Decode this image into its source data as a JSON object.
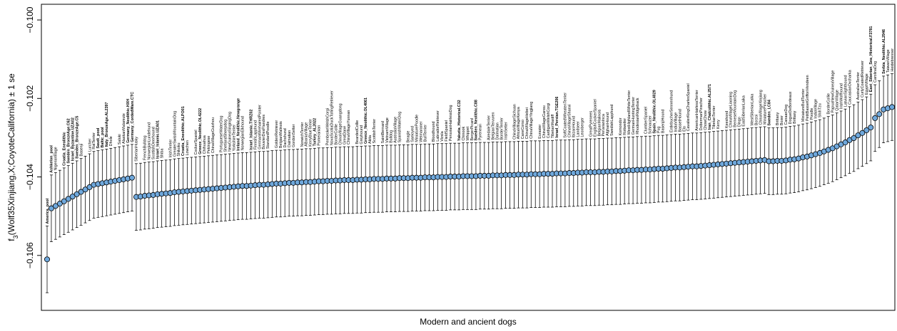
{
  "chart_data": {
    "type": "scatter",
    "title": "",
    "xlabel": "Modern and ancient dogs",
    "ylabel": "f₃(Wolf35Xinjiang,X;CoyoteCalifornia) ± 1 se",
    "ylabel_parts": {
      "prefix": "f",
      "subscript": "3",
      "body": "(Wolf35Xinjiang,X;CoyoteCalifornia) ± 1 se"
    },
    "ylim": [
      -0.1074,
      -0.0996
    ],
    "yticks": [
      -0.106,
      -0.104,
      -0.102,
      -0.1
    ],
    "ytick_labels": [
      "−0.106",
      "−0.104",
      "−0.102",
      "−0.100"
    ],
    "grid": false,
    "se": 0.00085,
    "n_points": 200,
    "labels": [
      {
        "i": 0,
        "text": "America_pool",
        "bold": true
      },
      {
        "i": 1,
        "text": "Ashkelon_pool",
        "bold": true
      },
      {
        "i": 2,
        "text": "NigeriaVillage",
        "bold": false
      },
      {
        "i": 3,
        "text": "Croatia_Eneolithic",
        "bold": true
      },
      {
        "i": 4,
        "text": "Sweden_BronzeAge.C62",
        "bold": true
      },
      {
        "i": 5,
        "text": "Israel_Byzantine.UZA02",
        "bold": true
      },
      {
        "i": 6,
        "text": "Sweden_BronzeAge.C5",
        "bold": true
      },
      {
        "i": 7,
        "text": "Basenji",
        "bold": false
      },
      {
        "i": 8,
        "text": "Lurcher",
        "bold": false
      },
      {
        "i": 9,
        "text": "RatTerrier",
        "bold": false
      },
      {
        "i": 10,
        "text": "Saudi_pool",
        "bold": true
      },
      {
        "i": 11,
        "text": "Baltic_pool",
        "bold": true
      },
      {
        "i": 12,
        "text": "Italy_BronzeAge.AL2397",
        "bold": true
      },
      {
        "i": 13,
        "text": "Dhole",
        "bold": false
      },
      {
        "i": 14,
        "text": "Saluki",
        "bold": false
      },
      {
        "i": 15,
        "text": "AlaskanMalamute",
        "bold": false
      },
      {
        "i": 16,
        "text": "Germany_Neolithic.HXH",
        "bold": true
      },
      {
        "i": 17,
        "text": "Germany_CordedWare.CTC",
        "bold": true
      },
      {
        "i": 18,
        "text": "SiberianHusky",
        "bold": false
      },
      {
        "i": 19,
        "text": "FrenchBulldog",
        "bold": false
      },
      {
        "i": 20,
        "text": "NorwegianLundehund",
        "bold": false
      },
      {
        "i": 21,
        "text": "ScottishDeerhound",
        "bold": false
      },
      {
        "i": 22,
        "text": "Israel_Islamic.UZA01",
        "bold": true
      },
      {
        "i": 23,
        "text": "Shiba",
        "bold": false
      },
      {
        "i": 24,
        "text": "IrishTerrier",
        "bold": false
      },
      {
        "i": 25,
        "text": "GreaterSwissMountainDog",
        "bold": false
      },
      {
        "i": 26,
        "text": "Shikoku",
        "bold": false
      },
      {
        "i": 27,
        "text": "Croatia_Eneolithic.ALPO01",
        "bold": true
      },
      {
        "i": 28,
        "text": "Lowchen",
        "bold": false
      },
      {
        "i": 29,
        "text": "CockerSpaniel",
        "bold": false
      },
      {
        "i": 30,
        "text": "Greece_Neolithic.OL4222",
        "bold": true
      },
      {
        "i": 31,
        "text": "Chihuahua",
        "bold": false
      },
      {
        "i": 32,
        "text": "Pekingese",
        "bold": false
      },
      {
        "i": 33,
        "text": "ChinaVillageGuizhou",
        "bold": false
      },
      {
        "i": 34,
        "text": "PortugueseWaterDog",
        "bold": false
      },
      {
        "i": 35,
        "text": "ShetlandSheepdog",
        "bold": false
      },
      {
        "i": 36,
        "text": "NewGuineaSingingDog",
        "bold": false
      },
      {
        "i": 37,
        "text": "YorkshireTerrier",
        "bold": false
      },
      {
        "i": 38,
        "text": "Ireland_Neolithic.Newgrange",
        "bold": true
      },
      {
        "i": 39,
        "text": "NorwegianElkhound",
        "bold": false
      },
      {
        "i": 40,
        "text": "Israel_Islamic.THRZ02",
        "bold": true
      },
      {
        "i": 41,
        "text": "FinnishLapphund",
        "bold": false
      },
      {
        "i": 42,
        "text": "GermanWirehairedPointer",
        "bold": false
      },
      {
        "i": 43,
        "text": "BouvierDesFlandres",
        "bold": false
      },
      {
        "i": 44,
        "text": "StandardPoodle",
        "bold": false
      },
      {
        "i": 45,
        "text": "GoldenRetriever",
        "bold": false
      },
      {
        "i": 46,
        "text": "BelgianMalinois",
        "bold": false
      },
      {
        "i": 47,
        "text": "Dachshund",
        "bold": false
      },
      {
        "i": 48,
        "text": "Dalmatian",
        "bold": false
      },
      {
        "i": 49,
        "text": "GordonSetter",
        "bold": false
      },
      {
        "i": 50,
        "text": "NorwichTerrier",
        "bold": false
      },
      {
        "i": 51,
        "text": "AlbaniaVillage",
        "bold": false
      },
      {
        "i": 52,
        "text": "KerryBlueTerrier",
        "bold": false
      },
      {
        "i": 53,
        "text": "Turkey_AL2022",
        "bold": true
      },
      {
        "i": 54,
        "text": "Pomeranian",
        "bold": false
      },
      {
        "i": 55,
        "text": "PembrokeWelshCorgi",
        "bold": false
      },
      {
        "i": 56,
        "text": "NovaScotiaDuckTollingRetriever",
        "bold": false
      },
      {
        "i": 57,
        "text": "BorderCollie",
        "bold": false
      },
      {
        "i": 58,
        "text": "ChinaVillageGuangdong",
        "bold": false
      },
      {
        "i": 59,
        "text": "GreatDane",
        "bold": false
      },
      {
        "i": 60,
        "text": "ChinaVillageYunnan",
        "bold": false
      },
      {
        "i": 61,
        "text": "BeardedCollie",
        "bold": false
      },
      {
        "i": 62,
        "text": "Greyhound",
        "bold": false
      },
      {
        "i": 63,
        "text": "Greece_Neolithic.OL4061",
        "bold": true
      },
      {
        "i": 64,
        "text": "Akita",
        "bold": false
      },
      {
        "i": 65,
        "text": "ScottishTerrier",
        "bold": false
      },
      {
        "i": 66,
        "text": "SaintBernard",
        "bold": false
      },
      {
        "i": 67,
        "text": "VietnamVillage",
        "bold": false
      },
      {
        "i": 68,
        "text": "Bulldog",
        "bold": false
      },
      {
        "i": 69,
        "text": "AustraliaVillage",
        "bold": false
      },
      {
        "i": 70,
        "text": "SpanishWaterDog",
        "bold": false
      },
      {
        "i": 71,
        "text": "Beagle",
        "bold": false
      },
      {
        "i": 72,
        "text": "Samoyed",
        "bold": false
      },
      {
        "i": 73,
        "text": "MiniaturePoodle",
        "bold": false
      },
      {
        "i": 74,
        "text": "Weimaraner",
        "bold": false
      },
      {
        "i": 75,
        "text": "BullTerrier",
        "bold": false
      },
      {
        "i": 76,
        "text": "Bloodhound",
        "bold": false
      },
      {
        "i": 77,
        "text": "LabradorRetriever",
        "bold": false
      },
      {
        "i": 78,
        "text": "Vizsla",
        "bold": false
      },
      {
        "i": 79,
        "text": "FieldSpaniel",
        "bold": false
      },
      {
        "i": 80,
        "text": "PeruvianHairlessDog",
        "bold": false
      },
      {
        "i": 81,
        "text": "Yakutia_Historical.C32",
        "bold": true
      },
      {
        "i": 82,
        "text": "Chinook",
        "bold": false
      },
      {
        "i": 83,
        "text": "Whippet",
        "bold": false
      },
      {
        "i": 84,
        "text": "BergerPicard",
        "bold": false
      },
      {
        "i": 85,
        "text": "Sweden_Neolithic.C88",
        "bold": true
      },
      {
        "i": 86,
        "text": "Pyrenean",
        "bold": false
      },
      {
        "i": 87,
        "text": "AiredaleTerrier",
        "bold": false
      },
      {
        "i": 88,
        "text": "BelgianTervuren",
        "bold": false
      },
      {
        "i": 89,
        "text": "Dalmatian",
        "bold": false
      },
      {
        "i": 90,
        "text": "BorderTerrier",
        "bold": false
      },
      {
        "i": 91,
        "text": "IrishSetter",
        "bold": false
      },
      {
        "i": 92,
        "text": "ChinaVillageSichuan",
        "bold": false
      },
      {
        "i": 93,
        "text": "AfricaVillageKenya",
        "bold": false
      },
      {
        "i": 94,
        "text": "CaneCorso",
        "bold": false
      },
      {
        "i": 95,
        "text": "ChinaVillageHebei",
        "bold": false
      },
      {
        "i": 96,
        "text": "ChinaVillageYingjiang",
        "bold": false
      },
      {
        "i": 97,
        "text": "Eurasier",
        "bold": false
      },
      {
        "i": 98,
        "text": "ChinaVillageGansu",
        "bold": false
      },
      {
        "i": 99,
        "text": "CardiganWelshCorgi",
        "bold": false
      },
      {
        "i": 100,
        "text": "TibetanMastiff",
        "bold": false
      },
      {
        "i": 101,
        "text": "Israel_Persian.TGE206",
        "bold": true
      },
      {
        "i": 102,
        "text": "SoftCoatedWheatenTerrier",
        "bold": false
      },
      {
        "i": 103,
        "text": "ChinaVillageShanxi",
        "bold": false
      },
      {
        "i": 104,
        "text": "IbizanHound",
        "bold": false
      },
      {
        "i": 105,
        "text": "Landseer",
        "bold": false
      },
      {
        "i": 106,
        "text": "Leonberger",
        "bold": false
      },
      {
        "i": 107,
        "text": "GreatPyrenees",
        "bold": false
      },
      {
        "i": 108,
        "text": "EnglishCockerSpaniel",
        "bold": false
      },
      {
        "i": 109,
        "text": "BelgianMalinois",
        "bold": false
      },
      {
        "i": 110,
        "text": "PeruvianInca",
        "bold": false
      },
      {
        "i": 111,
        "text": "AfghanHound",
        "bold": false
      },
      {
        "i": 112,
        "text": "SwedishLapphund",
        "bold": false
      },
      {
        "i": 113,
        "text": "Komondor",
        "bold": false
      },
      {
        "i": 114,
        "text": "Rottweiler",
        "bold": false
      },
      {
        "i": 115,
        "text": "WestHighlandWhiteTerrier",
        "bold": false
      },
      {
        "i": 116,
        "text": "GermanHuntingTerrier",
        "bold": false
      },
      {
        "i": 117,
        "text": "RhodesianRidgeback",
        "bold": false
      },
      {
        "i": 118,
        "text": "ClumberSpaniel",
        "bold": false
      },
      {
        "i": 119,
        "text": "Schnauzer",
        "bold": false
      },
      {
        "i": 120,
        "text": "Spain_Neolithic.OL4029",
        "bold": true
      },
      {
        "i": 121,
        "text": "Pug",
        "bold": false
      },
      {
        "i": 122,
        "text": "BasenjiHound",
        "bold": false
      },
      {
        "i": 123,
        "text": "EntlebucherSennenhund",
        "bold": false
      },
      {
        "i": 124,
        "text": "IndiaVillage",
        "bold": false
      },
      {
        "i": 125,
        "text": "BassetHound",
        "bold": false
      },
      {
        "i": 126,
        "text": "Elo",
        "bold": false
      },
      {
        "i": 127,
        "text": "CavalierKingCharlesSpaniel",
        "bold": false
      },
      {
        "i": 128,
        "text": "AmericanHairlessTerrier",
        "bold": false
      },
      {
        "i": 129,
        "text": "DobermanPinscher",
        "bold": false
      },
      {
        "i": 130,
        "text": "ChowChow",
        "bold": false
      },
      {
        "i": 131,
        "text": "Iran_Chalcolithic.AL2571",
        "bold": true
      },
      {
        "i": 132,
        "text": "TibetanTerrier",
        "bold": false
      },
      {
        "i": 133,
        "text": "Kerry",
        "bold": false
      },
      {
        "i": 134,
        "text": "Keeshond",
        "bold": false
      },
      {
        "i": 135,
        "text": "ChinaVillageLiaoning",
        "bold": false
      },
      {
        "i": 136,
        "text": "BerneseMountainDog",
        "bold": false
      },
      {
        "i": 137,
        "text": "Dingo",
        "bold": false
      },
      {
        "i": 138,
        "text": "EastSiberianLaika",
        "bold": false
      },
      {
        "i": 139,
        "text": "WestSiberianLaika",
        "bold": false
      },
      {
        "i": 140,
        "text": "Borzoi",
        "bold": false
      },
      {
        "i": 141,
        "text": "ChinaVillageXinjiang",
        "bold": false
      },
      {
        "i": 142,
        "text": "MiniaturePinscher",
        "bold": false
      },
      {
        "i": 143,
        "text": "Sweden_LC84",
        "bold": true
      },
      {
        "i": 144,
        "text": "Brittany",
        "bold": false
      },
      {
        "i": 145,
        "text": "Boxer",
        "bold": false
      },
      {
        "i": 146,
        "text": "CanaanDog",
        "bold": false
      },
      {
        "i": 147,
        "text": "DogueDeBordeaux",
        "bold": false
      },
      {
        "i": 148,
        "text": "Brittany",
        "bold": false
      },
      {
        "i": 149,
        "text": "MiniatureBullTerrier",
        "bold": false
      },
      {
        "i": 150,
        "text": "PetitBassetGriffonVendeen",
        "bold": false
      },
      {
        "i": 151,
        "text": "Poodle",
        "bold": false
      },
      {
        "i": 152,
        "text": "IndiaVillage",
        "bold": false
      },
      {
        "i": 153,
        "text": "ShihTzu",
        "bold": false
      },
      {
        "i": 154,
        "text": "BorderCollie",
        "bold": false
      },
      {
        "i": 155,
        "text": "PapuaNewGuineaVillage",
        "bold": false
      },
      {
        "i": 156,
        "text": "QatarVillage",
        "bold": false
      },
      {
        "i": 157,
        "text": "IrishWolfhound",
        "bold": false
      },
      {
        "i": 158,
        "text": "LatvianSighthound",
        "bold": false
      },
      {
        "i": 159,
        "text": "CaucasianOvcharka",
        "bold": false
      },
      {
        "i": 160,
        "text": "AustralianTerrier",
        "bold": false
      },
      {
        "i": 161,
        "text": "CurlyCoatedRetriever",
        "bold": false
      },
      {
        "i": 162,
        "text": "EgyptVillage",
        "bold": false
      },
      {
        "i": 163,
        "text": "East_Siberian_Sea_Historical.F3781",
        "bold": true
      },
      {
        "i": 164,
        "text": "CarolinaDog",
        "bold": false
      },
      {
        "i": 165,
        "text": "Serbia_Neolithic.AL2946",
        "bold": true
      },
      {
        "i": 166,
        "text": "TaiwanVillage",
        "bold": false
      },
      {
        "i": 167,
        "text": "Heidebrenner",
        "bold": false
      }
    ]
  }
}
